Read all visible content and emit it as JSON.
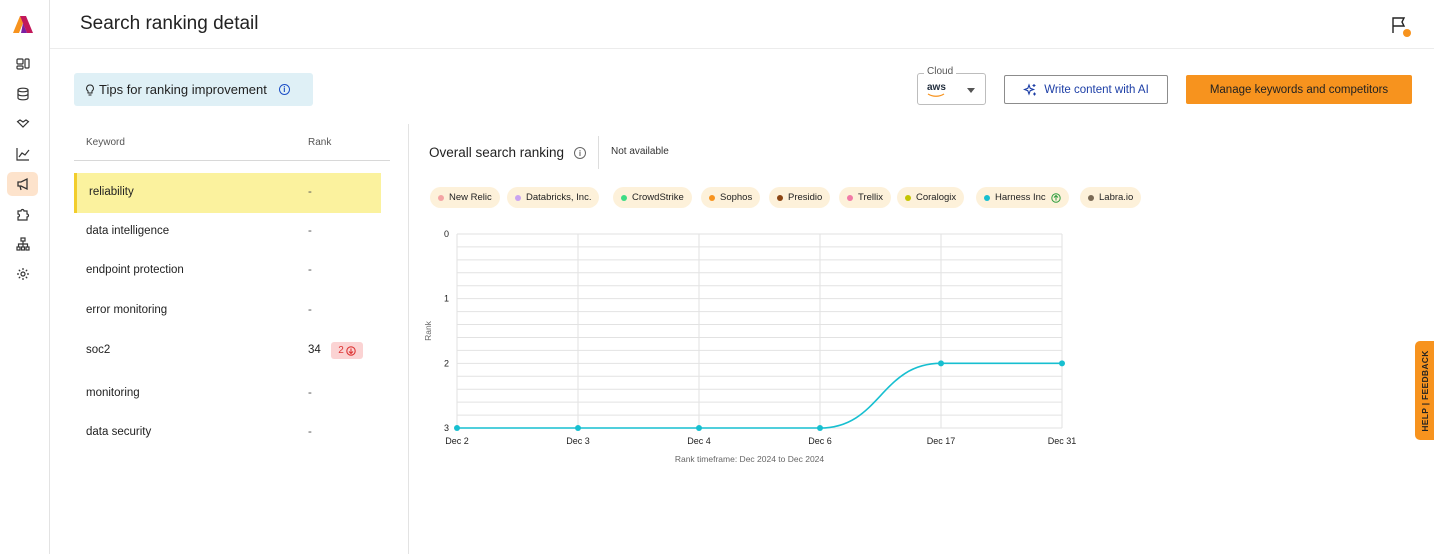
{
  "header": {
    "title": "Search ranking detail"
  },
  "sidebar": {
    "items": [
      {
        "icon": "dashboard-icon"
      },
      {
        "icon": "database-icon"
      },
      {
        "icon": "handshake-icon"
      },
      {
        "icon": "analytics-icon"
      },
      {
        "icon": "megaphone-icon",
        "active": true
      },
      {
        "icon": "puzzle-icon"
      },
      {
        "icon": "org-chart-icon"
      },
      {
        "icon": "settings-icon"
      }
    ]
  },
  "tips": {
    "label": "Tips for ranking improvement"
  },
  "cloud": {
    "label": "Cloud",
    "value": "aws"
  },
  "actions": {
    "write_ai": "Write content with AI",
    "manage": "Manage keywords and competitors"
  },
  "keywords": {
    "headers": {
      "keyword": "Keyword",
      "rank": "Rank"
    },
    "rows": [
      {
        "name": "reliability",
        "rank": "-"
      },
      {
        "name": "data intelligence",
        "rank": "-"
      },
      {
        "name": "endpoint protection",
        "rank": "-"
      },
      {
        "name": "error monitoring",
        "rank": "-"
      },
      {
        "name": "soc2",
        "rank": "34",
        "delta": "2"
      },
      {
        "name": "monitoring",
        "rank": "-"
      },
      {
        "name": "data security",
        "rank": "-"
      }
    ]
  },
  "chart_panel": {
    "title": "Overall search ranking",
    "status": "Not available"
  },
  "legend": [
    {
      "name": "New Relic",
      "color": "#f4a4a4"
    },
    {
      "name": "Databricks, Inc.",
      "color": "#c9a3f0"
    },
    {
      "name": "CrowdStrike",
      "color": "#3ddc84"
    },
    {
      "name": "Sophos",
      "color": "#f7931e"
    },
    {
      "name": "Presidio",
      "color": "#8b4513"
    },
    {
      "name": "Trellix",
      "color": "#f27aa6"
    },
    {
      "name": "Coralogix",
      "color": "#c4c400"
    },
    {
      "name": "Harness Inc",
      "color": "#17bfd0",
      "trend": "up"
    },
    {
      "name": "Labra.io",
      "color": "#7a6a55"
    }
  ],
  "chart_data": {
    "type": "line",
    "x": [
      "Dec 2",
      "Dec 3",
      "Dec 4",
      "Dec 6",
      "Dec 17",
      "Dec 31"
    ],
    "series": [
      {
        "name": "Harness Inc",
        "values": [
          3,
          3,
          3,
          3,
          2,
          2
        ],
        "color": "#17bfd0"
      }
    ],
    "ylabel": "Rank",
    "xlabel": "Rank timeframe: Dec 2024 to Dec 2024",
    "yticks": [
      "0",
      "1",
      "2",
      "3"
    ],
    "ylim": [
      0,
      3
    ],
    "y_inverted": true,
    "grid": true
  },
  "feedback": {
    "label": "HELP | FEEDBACK"
  }
}
